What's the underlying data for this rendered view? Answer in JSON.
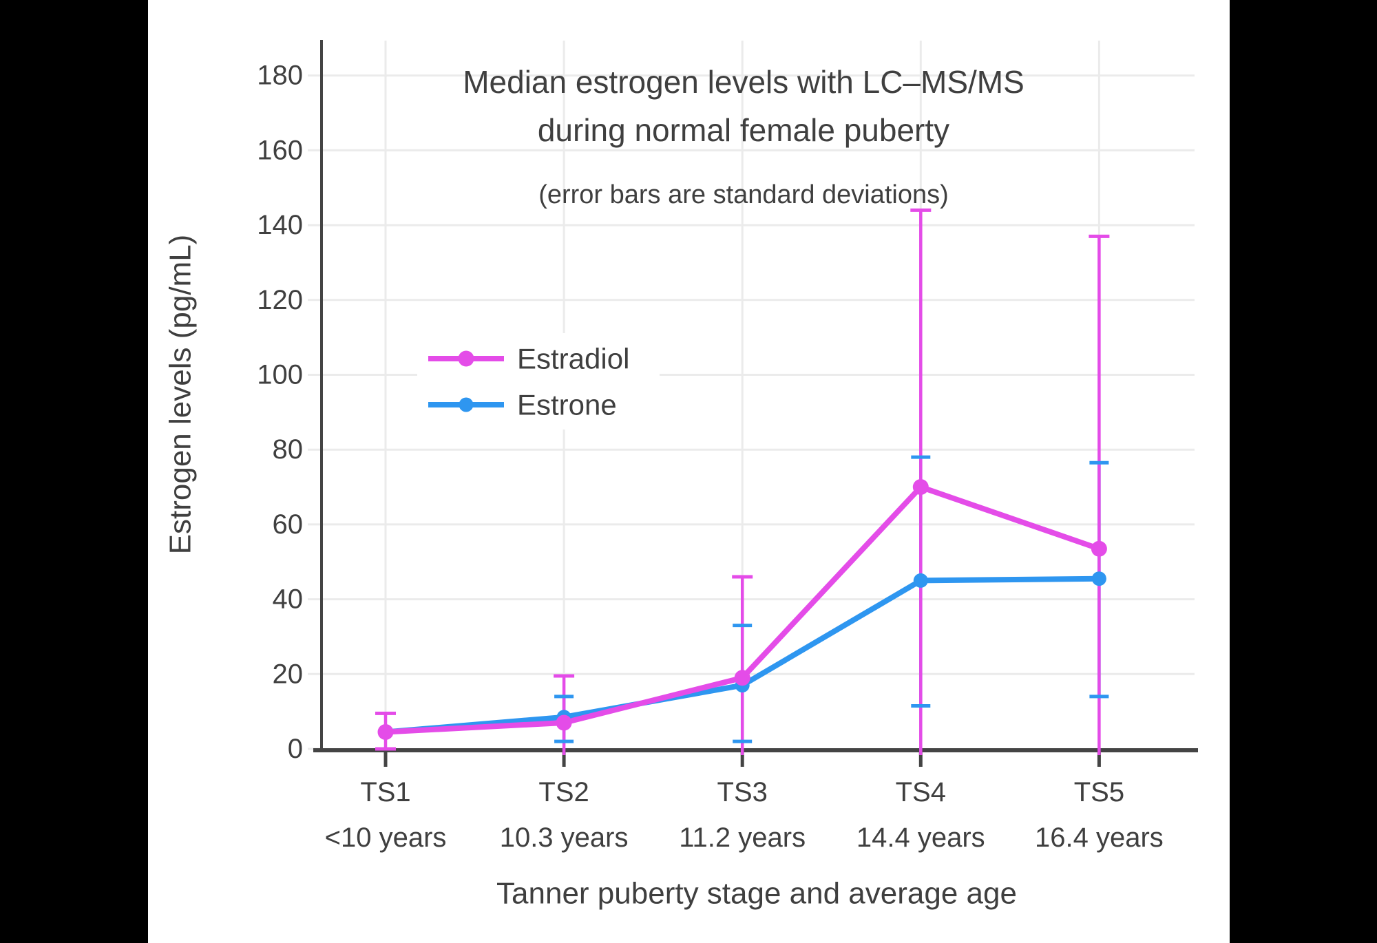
{
  "page": {
    "background": "#000000",
    "panel_background": "#ffffff",
    "text_color": "#3f3f3f",
    "grid_color": "#ebebeb",
    "axis_color": "#444444"
  },
  "title": {
    "line1": "Median estrogen levels with LC–MS/MS",
    "line2": "during normal female puberty",
    "subtitle": "(error bars are standard deviations)"
  },
  "legend": {
    "items": [
      {
        "label": "Estradiol",
        "color": "#e44ce8"
      },
      {
        "label": "Estrone",
        "color": "#2e96f0"
      }
    ]
  },
  "axes": {
    "y": {
      "label": "Estrogen levels (pg/mL)",
      "ticks": [
        0,
        20,
        40,
        60,
        80,
        100,
        120,
        140,
        160,
        180
      ]
    },
    "x": {
      "label": "Tanner puberty stage and average age",
      "categories": [
        {
          "stage": "TS1",
          "age": "<10 years"
        },
        {
          "stage": "TS2",
          "age": "10.3 years"
        },
        {
          "stage": "TS3",
          "age": "11.2 years"
        },
        {
          "stage": "TS4",
          "age": "14.4 years"
        },
        {
          "stage": "TS5",
          "age": "16.4 years"
        }
      ]
    }
  },
  "chart_data": {
    "type": "line",
    "title": "Median estrogen levels with LC–MS/MS during normal female puberty",
    "subtitle": "(error bars are standard deviations)",
    "xlabel": "Tanner puberty stage and average age",
    "ylabel": "Estrogen levels (pg/mL)",
    "ylim": [
      0,
      190
    ],
    "grid": true,
    "legend_position": "inside-upper-left",
    "categories": [
      "TS1 (<10 years)",
      "TS2 (10.3 years)",
      "TS3 (11.2 years)",
      "TS4 (14.4 years)",
      "TS5 (16.4 years)"
    ],
    "series": [
      {
        "name": "Estradiol",
        "color": "#e44ce8",
        "values": [
          4.5,
          7,
          19,
          70,
          53.5
        ],
        "error_top": [
          9.5,
          19.5,
          46,
          144,
          137
        ],
        "error_bottom": [
          0,
          null,
          null,
          null,
          null
        ],
        "note": "null bottom = error bar extends below 0 and is clipped at the x-axis"
      },
      {
        "name": "Estrone",
        "color": "#2e96f0",
        "values": [
          4.5,
          8.5,
          17,
          45,
          45.5
        ],
        "error_top": [
          null,
          14,
          33,
          78,
          76.5
        ],
        "error_bottom": [
          null,
          2,
          2,
          11.5,
          14
        ],
        "note": "null = error bar hidden behind the Estradiol marker at TS1"
      }
    ]
  }
}
